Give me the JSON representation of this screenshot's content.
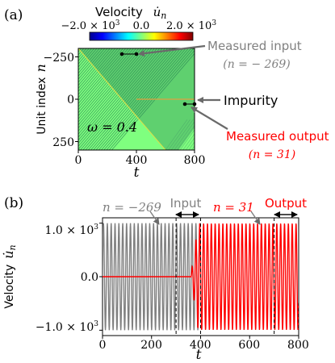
{
  "panel_a": {
    "label": "(a)",
    "colorbar": {
      "title": "Velocity",
      "symbol": "u̇",
      "symbol_sub": "n",
      "ticks": [
        "−2.0 × 10",
        "0.0",
        "2.0 × 10"
      ],
      "tick_exp": "3",
      "vmin": -2000,
      "vmax": 2000,
      "colormap": [
        "#00008f",
        "#0000ff",
        "#0080ff",
        "#00ffff",
        "#80ff80",
        "#ffff00",
        "#ff8000",
        "#ff0000",
        "#800000"
      ]
    },
    "ylabel": "Unit index",
    "ylabel_var": "n",
    "xlabel": "t",
    "x_ticks": [
      "0",
      "400",
      "800"
    ],
    "y_ticks": [
      "−250",
      "0",
      "250"
    ],
    "omega_text": "ω = 0.4",
    "ann_input": "Measured input",
    "ann_input_sub": "(n = − 269)",
    "ann_impurity": "Impurity",
    "ann_output": "Measured output",
    "ann_output_sub": "(n = 31)",
    "colors": {
      "background": "#7fff7f",
      "wave": "#2e8b57",
      "impurity": "#e0a040",
      "input_annotation": "#808080",
      "output_annotation": "#ff0000"
    }
  },
  "panel_b": {
    "label": "(b)",
    "ylabel": "Velocity",
    "ylabel_sym": "u̇",
    "ylabel_sub": "n",
    "xlabel": "t",
    "y_ticks": [
      "1.0 × 10",
      "0.0",
      "−1.0 × 10"
    ],
    "y_tick_exp": "3",
    "x_ticks": [
      "0",
      "200",
      "400",
      "600",
      "800"
    ],
    "label_input_series": "n = −269",
    "label_output_series": "n = 31",
    "input_window_label": "Input",
    "output_window_label": "Output",
    "colors": {
      "input_series": "#808080",
      "output_series": "#ff0000"
    }
  },
  "chart_data": [
    {
      "type": "heatmap",
      "panel": "(a)",
      "xlabel": "t",
      "ylabel": "Unit index n",
      "xlim": [
        0,
        800
      ],
      "ylim": [
        -300,
        300
      ],
      "y_inverted": true,
      "colorbar_range": [
        -2000,
        2000
      ],
      "omega": 0.4,
      "impurity_n": 0,
      "input_n": -269,
      "output_n": 31,
      "input_window": [
        300,
        400
      ],
      "output_window": [
        700,
        800
      ]
    },
    {
      "type": "line",
      "panel": "(b)",
      "xlabel": "t",
      "ylabel": "Velocity u̇_n",
      "xlim": [
        0,
        800
      ],
      "ylim": [
        -1100,
        1100
      ],
      "input_window": [
        300,
        400
      ],
      "output_window": [
        700,
        800
      ],
      "series": [
        {
          "name": "n = −269",
          "amplitude": 1000,
          "t_start": 0,
          "t_end": 400,
          "omega": 0.4
        },
        {
          "name": "n = 31",
          "amplitude": 1000,
          "t_start": 360,
          "t_end": 800,
          "omega": 0.4
        }
      ]
    }
  ]
}
